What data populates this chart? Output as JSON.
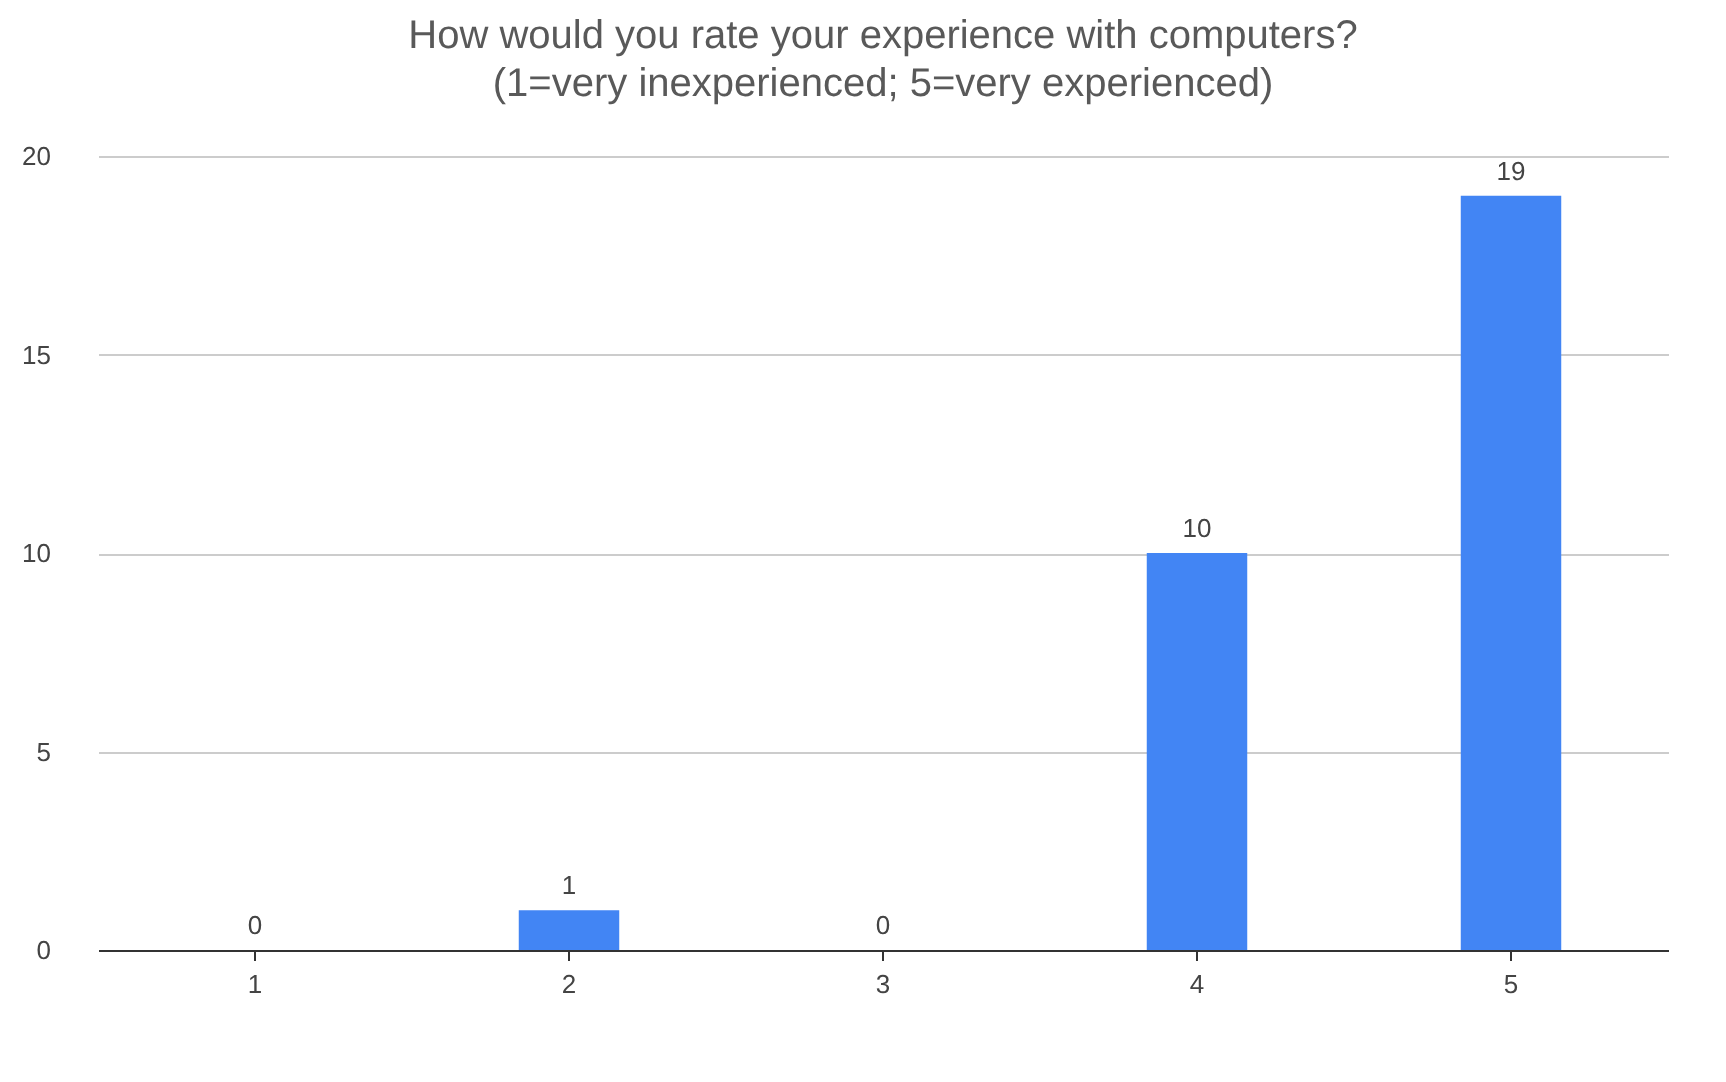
{
  "chart_data": {
    "type": "bar",
    "title": "How would you rate your experience with computers?",
    "subtitle": "(1=very inexperienced; 5=very experienced)",
    "categories": [
      "1",
      "2",
      "3",
      "4",
      "5"
    ],
    "values": [
      0,
      1,
      0,
      10,
      19
    ],
    "color": "#4285f4",
    "ylim": [
      0,
      20
    ],
    "yticks": [
      0,
      5,
      10,
      15,
      20
    ],
    "grid": "y",
    "data_labels": true
  }
}
